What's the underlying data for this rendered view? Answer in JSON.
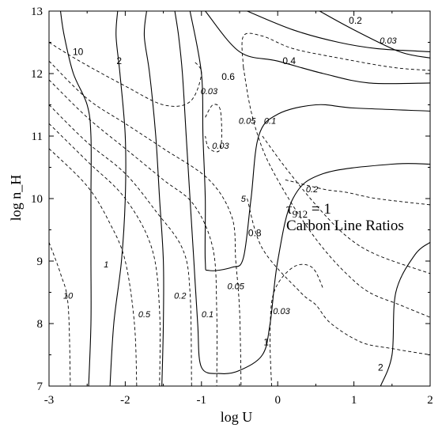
{
  "chart_data": {
    "type": "contour",
    "xlabel": "log U",
    "ylabel": "log n_H",
    "xlim": [
      -3,
      2
    ],
    "ylim": [
      7,
      13
    ],
    "x_ticks": [
      "-3",
      "-2",
      "-1",
      "0",
      "1",
      "2"
    ],
    "y_ticks": [
      "7",
      "8",
      "9",
      "10",
      "11",
      "12",
      "13"
    ],
    "annotation": {
      "line1_main": "τ",
      "line1_sub": "912",
      "line1_rest": " = 1",
      "line2": "Carbon Line Ratios"
    },
    "series": [
      {
        "style": "solid",
        "points": [
          [
            -2.85,
            13
          ],
          [
            -2.8,
            12.6
          ],
          [
            -2.68,
            12.0
          ],
          [
            -2.5,
            11.5
          ],
          [
            -2.45,
            11.0
          ],
          [
            -2.45,
            10.0
          ],
          [
            -2.45,
            9.0
          ],
          [
            -2.45,
            8.0
          ],
          [
            -2.48,
            7
          ]
        ]
      },
      {
        "style": "solid",
        "points": [
          [
            -2.1,
            13
          ],
          [
            -2.12,
            12.6
          ],
          [
            -2.07,
            12.0
          ],
          [
            -2.0,
            11.0
          ],
          [
            -2.0,
            10.0
          ],
          [
            -2.05,
            9.0
          ],
          [
            -2.15,
            8.0
          ],
          [
            -2.2,
            7
          ]
        ]
      },
      {
        "style": "solid",
        "points": [
          [
            -1.72,
            13
          ],
          [
            -1.75,
            12.6
          ],
          [
            -1.68,
            12.0
          ],
          [
            -1.6,
            11.0
          ],
          [
            -1.55,
            10.0
          ],
          [
            -1.5,
            9.0
          ],
          [
            -1.5,
            8.0
          ],
          [
            -1.52,
            7
          ]
        ]
      },
      {
        "style": "solid",
        "points": [
          [
            -1.35,
            13
          ],
          [
            -1.3,
            12.6
          ],
          [
            -1.25,
            12.0
          ],
          [
            -1.2,
            11.0
          ],
          [
            -1.15,
            10.0
          ],
          [
            -1.1,
            9.0
          ],
          [
            -1.05,
            8.0
          ],
          [
            -1.0,
            7.3
          ],
          [
            -0.75,
            7.2
          ],
          [
            -0.5,
            7.25
          ],
          [
            -0.2,
            7.5
          ],
          [
            -0.1,
            8.0
          ],
          [
            0.0,
            9.0
          ],
          [
            0.2,
            10.0
          ],
          [
            0.6,
            10.4
          ],
          [
            1.5,
            10.55
          ],
          [
            2,
            10.55
          ]
        ]
      },
      {
        "style": "solid",
        "points": [
          [
            -1.15,
            13
          ],
          [
            -1.0,
            12.0
          ],
          [
            -0.98,
            11.0
          ],
          [
            -0.95,
            10.0
          ],
          [
            -0.95,
            9.0
          ],
          [
            -0.9,
            8.85
          ],
          [
            -0.6,
            8.9
          ],
          [
            -0.45,
            9.05
          ],
          [
            -0.35,
            10.0
          ],
          [
            -0.25,
            11.0
          ],
          [
            0.0,
            11.35
          ],
          [
            0.5,
            11.5
          ],
          [
            1.0,
            11.45
          ],
          [
            2,
            11.4
          ]
        ]
      },
      {
        "style": "solid",
        "points": [
          [
            -0.95,
            13
          ],
          [
            -0.5,
            12.35
          ],
          [
            0.0,
            12.2
          ],
          [
            0.6,
            12.0
          ],
          [
            1.2,
            11.85
          ],
          [
            2,
            11.85
          ]
        ]
      },
      {
        "style": "solid",
        "points": [
          [
            -0.4,
            13
          ],
          [
            0.2,
            12.7
          ],
          [
            0.8,
            12.5
          ],
          [
            1.3,
            12.4
          ],
          [
            2,
            12.35
          ]
        ]
      },
      {
        "style": "solid",
        "points": [
          [
            0.55,
            13
          ],
          [
            1.0,
            12.7
          ],
          [
            1.6,
            12.35
          ],
          [
            2,
            12.25
          ]
        ]
      },
      {
        "style": "solid",
        "points": [
          [
            1.35,
            7
          ],
          [
            1.5,
            7.5
          ],
          [
            1.55,
            8.5
          ],
          [
            1.8,
            9.1
          ],
          [
            2,
            9.3
          ]
        ]
      },
      {
        "style": "dashed",
        "points": [
          [
            -3,
            12.5
          ],
          [
            -2.6,
            12.2
          ],
          [
            -2.0,
            11.8
          ],
          [
            -1.5,
            11.5
          ],
          [
            -1.15,
            11.55
          ],
          [
            -1.0,
            12.0
          ],
          [
            -1.1,
            12.2
          ]
        ]
      },
      {
        "style": "dashed",
        "points": [
          [
            -3,
            12.2
          ],
          [
            -2.5,
            11.6
          ],
          [
            -2.0,
            11.2
          ],
          [
            -1.5,
            10.8
          ],
          [
            -0.9,
            10.3
          ],
          [
            -0.6,
            9.7
          ],
          [
            -0.55,
            9.0
          ],
          [
            -0.5,
            8.2
          ],
          [
            -0.48,
            7
          ]
        ]
      },
      {
        "style": "dashed",
        "points": [
          [
            -3,
            11.9
          ],
          [
            -2.5,
            11.3
          ],
          [
            -2.0,
            10.8
          ],
          [
            -1.5,
            10.3
          ],
          [
            -1.1,
            9.9
          ],
          [
            -0.85,
            9.2
          ],
          [
            -0.8,
            8.2
          ],
          [
            -0.8,
            7
          ]
        ]
      },
      {
        "style": "dashed",
        "points": [
          [
            -3,
            11.5
          ],
          [
            -2.5,
            10.9
          ],
          [
            -2.0,
            10.4
          ],
          [
            -1.6,
            9.8
          ],
          [
            -1.25,
            9.2
          ],
          [
            -1.15,
            8.5
          ],
          [
            -1.13,
            7
          ]
        ]
      },
      {
        "style": "dashed",
        "points": [
          [
            -3,
            11.2
          ],
          [
            -2.5,
            10.6
          ],
          [
            -2.0,
            10.0
          ],
          [
            -1.65,
            9.2
          ],
          [
            -1.55,
            8.2
          ],
          [
            -1.55,
            7
          ]
        ]
      },
      {
        "style": "dashed",
        "points": [
          [
            -3,
            10.8
          ],
          [
            -2.5,
            10.2
          ],
          [
            -2.2,
            9.6
          ],
          [
            -2.0,
            9.0
          ],
          [
            -1.88,
            8.0
          ],
          [
            -1.85,
            7
          ]
        ]
      },
      {
        "style": "dashed",
        "points": [
          [
            -3,
            9.3
          ],
          [
            -2.85,
            8.8
          ],
          [
            -2.75,
            8.3
          ],
          [
            -2.72,
            7
          ]
        ]
      },
      {
        "style": "dashed",
        "points": [
          [
            -0.95,
            11.3
          ],
          [
            -0.85,
            11.5
          ],
          [
            -0.75,
            11.4
          ],
          [
            -0.75,
            10.8
          ],
          [
            -0.9,
            10.8
          ],
          [
            -0.95,
            11.0
          ]
        ]
      },
      {
        "style": "dashed",
        "points": [
          [
            -0.45,
            12.1
          ],
          [
            -0.45,
            12.6
          ],
          [
            -0.2,
            12.6
          ],
          [
            0.2,
            12.4
          ],
          [
            0.8,
            12.25
          ],
          [
            1.5,
            12.1
          ],
          [
            2,
            12.05
          ]
        ]
      },
      {
        "style": "dashed",
        "points": [
          [
            -0.45,
            12.1
          ],
          [
            -0.35,
            11.4
          ],
          [
            -0.2,
            10.8
          ],
          [
            0.0,
            10.3
          ],
          [
            0.3,
            9.7
          ],
          [
            0.6,
            9.2
          ],
          [
            0.9,
            8.8
          ],
          [
            1.2,
            8.5
          ],
          [
            1.6,
            8.3
          ],
          [
            2,
            8.1
          ]
        ]
      },
      {
        "style": "dashed",
        "points": [
          [
            -0.2,
            11.0
          ],
          [
            0.1,
            10.5
          ],
          [
            0.5,
            9.9
          ],
          [
            0.9,
            9.4
          ],
          [
            1.3,
            9.1
          ],
          [
            2,
            8.8
          ]
        ]
      },
      {
        "style": "dashed",
        "points": [
          [
            0.1,
            10.3
          ],
          [
            0.6,
            10.15
          ],
          [
            0.9,
            10.1
          ],
          [
            1.3,
            10.0
          ],
          [
            2,
            9.9
          ]
        ]
      },
      {
        "style": "dashed",
        "points": [
          [
            -0.4,
            10.0
          ],
          [
            -0.2,
            9.2
          ],
          [
            0.3,
            8.5
          ],
          [
            0.5,
            8.3
          ],
          [
            0.7,
            8.0
          ],
          [
            1.1,
            7.7
          ],
          [
            1.5,
            7.6
          ],
          [
            2,
            7.5
          ]
        ]
      },
      {
        "style": "dashed",
        "points": [
          [
            -0.08,
            7.0
          ],
          [
            -0.1,
            7.8
          ],
          [
            -0.05,
            8.5
          ],
          [
            0.2,
            8.9
          ],
          [
            0.45,
            8.9
          ],
          [
            0.6,
            8.55
          ]
        ]
      }
    ],
    "labels": [
      {
        "text": "10",
        "style": "solid",
        "x": -2.62,
        "y": 12.35
      },
      {
        "text": "2",
        "style": "solid",
        "x": -2.08,
        "y": 12.2
      },
      {
        "text": "0.2",
        "style": "solid",
        "x": 1.02,
        "y": 12.85
      },
      {
        "text": "0.4",
        "style": "solid",
        "x": 0.15,
        "y": 12.2
      },
      {
        "text": "0.6",
        "style": "solid",
        "x": -0.65,
        "y": 11.95
      },
      {
        "text": "0.8",
        "style": "solid",
        "x": -0.3,
        "y": 9.45
      },
      {
        "text": "1",
        "style": "solid",
        "x": -0.15,
        "y": 7.7
      },
      {
        "text": "2",
        "style": "solid",
        "x": 1.35,
        "y": 7.3
      },
      {
        "text": "0.03",
        "style": "dashed",
        "x": 1.45,
        "y": 12.53
      },
      {
        "text": "0.03",
        "style": "dashed",
        "x": -0.9,
        "y": 11.72
      },
      {
        "text": "0.05",
        "style": "dashed",
        "x": -0.4,
        "y": 11.25
      },
      {
        "text": "0.1",
        "style": "dashed",
        "x": -0.1,
        "y": 11.25
      },
      {
        "text": "0.03",
        "style": "dashed",
        "x": -0.75,
        "y": 10.85
      },
      {
        "text": "0.2",
        "style": "dashed",
        "x": 0.45,
        "y": 10.15
      },
      {
        "text": "0.05",
        "style": "dashed",
        "x": -0.55,
        "y": 8.6
      },
      {
        "text": "0.03",
        "style": "dashed",
        "x": 0.05,
        "y": 8.2
      },
      {
        "text": "0.2",
        "style": "dashed",
        "x": -1.28,
        "y": 8.45
      },
      {
        "text": "0.1",
        "style": "dashed",
        "x": -0.92,
        "y": 8.15
      },
      {
        "text": "0.5",
        "style": "dashed",
        "x": -1.75,
        "y": 8.15
      },
      {
        "text": "1",
        "style": "dashed",
        "x": -2.25,
        "y": 8.95
      },
      {
        "text": "10",
        "style": "dashed",
        "x": -2.75,
        "y": 8.45
      },
      {
        "text": "5",
        "style": "dashed",
        "x": -0.45,
        "y": 10.0
      }
    ]
  }
}
